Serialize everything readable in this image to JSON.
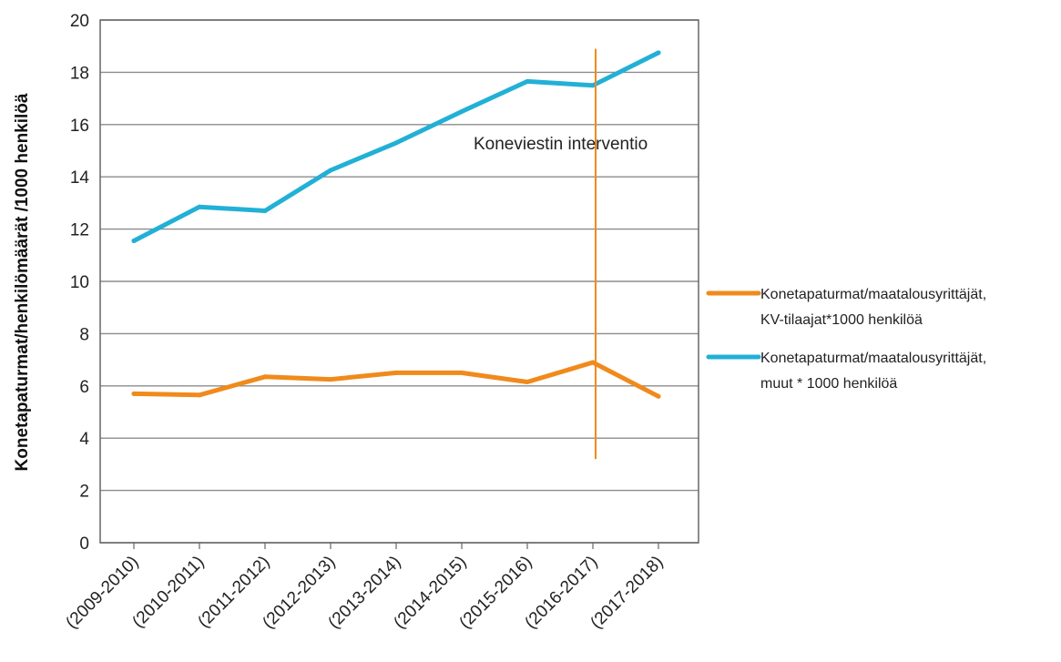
{
  "chart_data": {
    "type": "line",
    "ylabel": "Konetapaturmat/henkilömäärät /1000 henkilöä",
    "xlabel": "",
    "ylim": [
      0,
      20
    ],
    "yticks": [
      0,
      2,
      4,
      6,
      8,
      10,
      12,
      14,
      16,
      18,
      20
    ],
    "grid": true,
    "legend_position": "right",
    "categories": [
      "(2009-2010)",
      "(2010-2011)",
      "(2011-2012)",
      "(2012-2013)",
      "(2013-2014)",
      "(2014-2015)",
      "(2015-2016)",
      "(2016-2017)",
      "(2017-2018)"
    ],
    "series": [
      {
        "name": "Konetapaturmat/maatalousyrittäjät, KV-tilaajat*1000 henkilöä",
        "legend_lines": [
          "Konetapaturmat/maatalousyrittäjät,",
          "KV-tilaajat*1000 henkilöä"
        ],
        "color": "#f08a1c",
        "values": [
          5.7,
          5.65,
          6.35,
          6.25,
          6.5,
          6.5,
          6.15,
          6.9,
          5.6
        ]
      },
      {
        "name": "Konetapaturmat/maatalousyrittäjät, muut * 1000 henkilöä",
        "legend_lines": [
          "Konetapaturmat/maatalousyrittäjät,",
          "muut * 1000 henkilöä"
        ],
        "color": "#22b0d6",
        "values": [
          11.55,
          12.85,
          12.7,
          14.25,
          15.3,
          16.5,
          17.65,
          17.5,
          18.75
        ]
      }
    ],
    "annotation": {
      "text": "Koneviestin interventio",
      "category": "(2016-2017)",
      "y_from": 3.2,
      "y_to": 18.9,
      "color": "#f08a1c"
    }
  }
}
